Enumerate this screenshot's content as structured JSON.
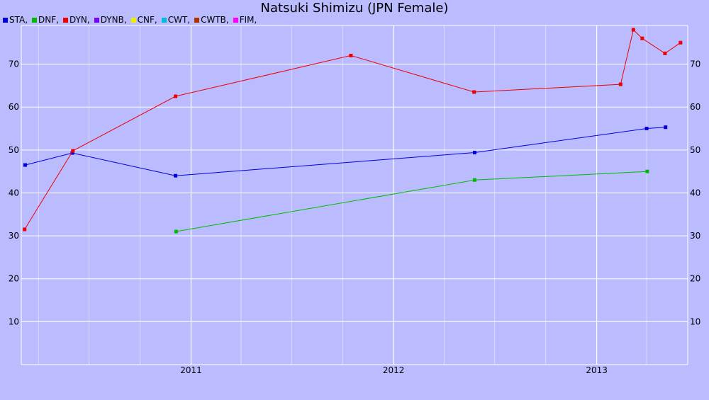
{
  "chart_data": {
    "type": "line",
    "title": "Natsuki Shimizu (JPN Female)",
    "legend": [
      {
        "label": "STA,",
        "color": "#0000dd"
      },
      {
        "label": "DNF,",
        "color": "#00bb00"
      },
      {
        "label": "DYN,",
        "color": "#ee0000"
      },
      {
        "label": "DYNB,",
        "color": "#7700ff"
      },
      {
        "label": "CNF,",
        "color": "#eeee00"
      },
      {
        "label": "CWT,",
        "color": "#00bbdd"
      },
      {
        "label": "CWTB,",
        "color": "#aa3300"
      },
      {
        "label": "FIM,",
        "color": "#ff00ff"
      }
    ],
    "x_ticks": [
      {
        "label": "2011",
        "date": "2011-01-01"
      },
      {
        "label": "2012",
        "date": "2012-01-01"
      },
      {
        "label": "2013",
        "date": "2013-01-01"
      }
    ],
    "xlim": [
      "2010-03-01",
      "2013-06-14"
    ],
    "ylim": [
      0,
      79
    ],
    "y_ticks": [
      10,
      20,
      30,
      40,
      50,
      60,
      70
    ],
    "grid": true,
    "series": [
      {
        "name": "STA",
        "color": "#0000dd",
        "points": [
          {
            "x": "2010-03-08",
            "y": 46.5
          },
          {
            "x": "2010-06-01",
            "y": 49.3
          },
          {
            "x": "2010-12-04",
            "y": 44.0
          },
          {
            "x": "2012-05-26",
            "y": 49.4
          },
          {
            "x": "2013-04-01",
            "y": 55.0
          },
          {
            "x": "2013-05-05",
            "y": 55.3
          }
        ]
      },
      {
        "name": "DNF",
        "color": "#00bb00",
        "points": [
          {
            "x": "2010-12-05",
            "y": 31.0
          },
          {
            "x": "2012-05-26",
            "y": 43.0
          },
          {
            "x": "2013-04-02",
            "y": 45.0
          }
        ]
      },
      {
        "name": "DYN",
        "color": "#ee0000",
        "points": [
          {
            "x": "2010-03-07",
            "y": 31.5
          },
          {
            "x": "2010-06-02",
            "y": 49.8
          },
          {
            "x": "2010-12-04",
            "y": 62.5
          },
          {
            "x": "2011-10-16",
            "y": 72.0
          },
          {
            "x": "2012-05-25",
            "y": 63.5
          },
          {
            "x": "2013-02-13",
            "y": 65.3
          },
          {
            "x": "2013-03-08",
            "y": 78.0
          },
          {
            "x": "2013-03-24",
            "y": 76.0
          },
          {
            "x": "2013-05-04",
            "y": 72.5
          },
          {
            "x": "2013-06-01",
            "y": 75.0
          }
        ]
      }
    ]
  }
}
